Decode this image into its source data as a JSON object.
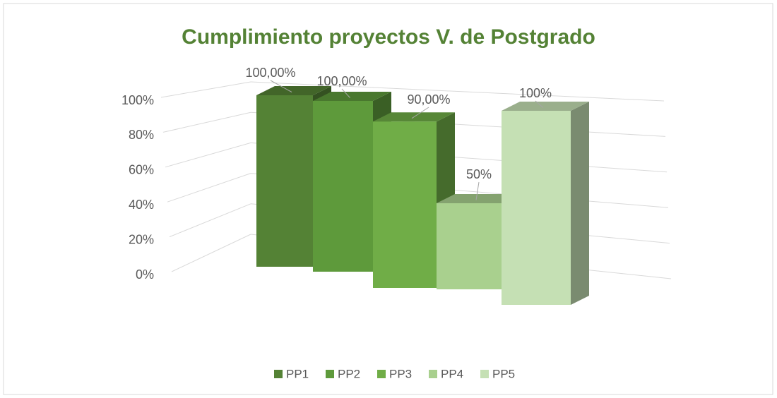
{
  "chart_data": {
    "type": "bar3d",
    "title": "Cumplimiento proyectos V. de Postgrado",
    "categories": [
      null
    ],
    "series": [
      {
        "name": "PP1",
        "color": "#548235",
        "values": [
          100
        ],
        "value_labels": [
          "100,00%"
        ]
      },
      {
        "name": "PP2",
        "color": "#5e9a3b",
        "values": [
          100
        ],
        "value_labels": [
          "100,00%"
        ]
      },
      {
        "name": "PP3",
        "color": "#70ad47",
        "values": [
          90
        ],
        "value_labels": [
          "90,00%"
        ]
      },
      {
        "name": "PP4",
        "color": "#a9d08e",
        "values": [
          50
        ],
        "value_labels": [
          "50%"
        ]
      },
      {
        "name": "PP5",
        "color": "#c5e0b4",
        "values": [
          100
        ],
        "value_labels": [
          "100%"
        ]
      }
    ],
    "ylim": [
      0,
      100
    ],
    "yticks": [
      {
        "value": 0,
        "label": "0%"
      },
      {
        "value": 20,
        "label": "20%"
      },
      {
        "value": 40,
        "label": "40%"
      },
      {
        "value": 60,
        "label": "60%"
      },
      {
        "value": 80,
        "label": "80%"
      },
      {
        "value": 100,
        "label": "100%"
      }
    ],
    "grid": true,
    "legend": "bottom"
  }
}
